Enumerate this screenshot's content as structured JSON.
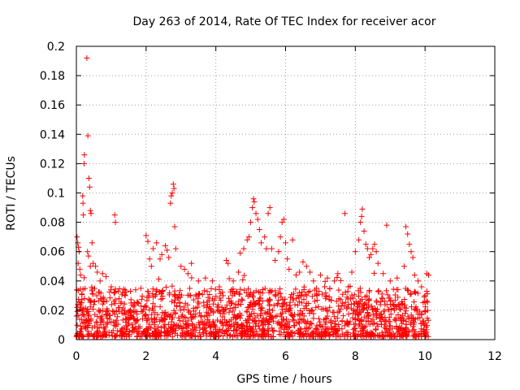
{
  "chart_data": {
    "type": "scatter",
    "title": "Day 263 of 2014, Rate Of TEC Index for receiver acor",
    "xlabel": "GPS time / hours",
    "ylabel": "ROTI / TECUs",
    "xlim": [
      0,
      12
    ],
    "ylim": [
      0,
      0.2
    ],
    "xticks": [
      0,
      2,
      4,
      6,
      8,
      10,
      12
    ],
    "yticks": [
      0,
      0.02,
      0.04,
      0.06,
      0.08,
      0.1,
      0.12,
      0.14,
      0.16,
      0.18,
      0.2
    ],
    "xtick_labels": [
      "0",
      "2",
      "4",
      "6",
      "8",
      "10",
      "12"
    ],
    "ytick_labels": [
      "0",
      "0.02",
      "0.04",
      "0.06",
      "0.08",
      "0.1",
      "0.12",
      "0.14",
      "0.16",
      "0.18",
      "0.2"
    ],
    "grid": true,
    "marker": "+",
    "color": "#ff0000",
    "series": [
      {
        "name": "ROTI",
        "points": [
          [
            0.02,
            0.07
          ],
          [
            0.04,
            0.066
          ],
          [
            0.06,
            0.063
          ],
          [
            0.08,
            0.06
          ],
          [
            0.05,
            0.052
          ],
          [
            0.1,
            0.048
          ],
          [
            0.12,
            0.044
          ],
          [
            0.18,
            0.098
          ],
          [
            0.19,
            0.093
          ],
          [
            0.2,
            0.085
          ],
          [
            0.22,
            0.12
          ],
          [
            0.23,
            0.126
          ],
          [
            0.3,
            0.192
          ],
          [
            0.33,
            0.139
          ],
          [
            0.36,
            0.11
          ],
          [
            0.38,
            0.104
          ],
          [
            0.4,
            0.088
          ],
          [
            0.42,
            0.086
          ],
          [
            0.45,
            0.066
          ],
          [
            0.32,
            0.06
          ],
          [
            0.35,
            0.057
          ],
          [
            0.4,
            0.05
          ],
          [
            0.48,
            0.052
          ],
          [
            0.55,
            0.05
          ],
          [
            0.6,
            0.046
          ],
          [
            0.68,
            0.04
          ],
          [
            0.75,
            0.045
          ],
          [
            0.85,
            0.043
          ],
          [
            1.0,
            0.036
          ],
          [
            1.1,
            0.085
          ],
          [
            1.12,
            0.08
          ],
          [
            1.2,
            0.033
          ],
          [
            1.4,
            0.03
          ],
          [
            1.55,
            0.033
          ],
          [
            1.7,
            0.034
          ],
          [
            1.85,
            0.035
          ],
          [
            2.0,
            0.071
          ],
          [
            2.05,
            0.067
          ],
          [
            2.1,
            0.055
          ],
          [
            2.15,
            0.05
          ],
          [
            2.2,
            0.062
          ],
          [
            2.3,
            0.066
          ],
          [
            2.4,
            0.055
          ],
          [
            2.45,
            0.058
          ],
          [
            2.55,
            0.064
          ],
          [
            2.6,
            0.061
          ],
          [
            2.65,
            0.056
          ],
          [
            2.7,
            0.093
          ],
          [
            2.72,
            0.098
          ],
          [
            2.75,
            0.1
          ],
          [
            2.78,
            0.106
          ],
          [
            2.8,
            0.103
          ],
          [
            2.82,
            0.077
          ],
          [
            2.85,
            0.062
          ],
          [
            3.0,
            0.05
          ],
          [
            3.1,
            0.048
          ],
          [
            3.2,
            0.045
          ],
          [
            3.3,
            0.052
          ],
          [
            3.5,
            0.04
          ],
          [
            3.7,
            0.042
          ],
          [
            3.9,
            0.04
          ],
          [
            4.1,
            0.036
          ],
          [
            4.3,
            0.054
          ],
          [
            4.35,
            0.052
          ],
          [
            4.5,
            0.04
          ],
          [
            4.65,
            0.046
          ],
          [
            4.7,
            0.059
          ],
          [
            4.8,
            0.062
          ],
          [
            4.9,
            0.068
          ],
          [
            4.95,
            0.07
          ],
          [
            5.0,
            0.08
          ],
          [
            5.05,
            0.09
          ],
          [
            5.08,
            0.096
          ],
          [
            5.1,
            0.094
          ],
          [
            5.15,
            0.086
          ],
          [
            5.2,
            0.082
          ],
          [
            5.25,
            0.075
          ],
          [
            5.3,
            0.066
          ],
          [
            5.4,
            0.07
          ],
          [
            5.45,
            0.062
          ],
          [
            5.5,
            0.086
          ],
          [
            5.55,
            0.09
          ],
          [
            5.6,
            0.062
          ],
          [
            5.7,
            0.054
          ],
          [
            5.8,
            0.06
          ],
          [
            5.85,
            0.07
          ],
          [
            5.9,
            0.08
          ],
          [
            5.95,
            0.082
          ],
          [
            6.0,
            0.066
          ],
          [
            6.05,
            0.055
          ],
          [
            6.1,
            0.048
          ],
          [
            6.2,
            0.068
          ],
          [
            6.3,
            0.044
          ],
          [
            6.4,
            0.046
          ],
          [
            6.5,
            0.053
          ],
          [
            6.6,
            0.05
          ],
          [
            6.7,
            0.046
          ],
          [
            6.8,
            0.04
          ],
          [
            7.0,
            0.044
          ],
          [
            7.2,
            0.042
          ],
          [
            7.4,
            0.04
          ],
          [
            7.5,
            0.045
          ],
          [
            7.7,
            0.086
          ],
          [
            7.8,
            0.036
          ],
          [
            7.9,
            0.046
          ],
          [
            8.0,
            0.06
          ],
          [
            8.1,
            0.068
          ],
          [
            8.15,
            0.08
          ],
          [
            8.18,
            0.084
          ],
          [
            8.2,
            0.089
          ],
          [
            8.25,
            0.074
          ],
          [
            8.3,
            0.065
          ],
          [
            8.35,
            0.062
          ],
          [
            8.4,
            0.056
          ],
          [
            8.45,
            0.058
          ],
          [
            8.5,
            0.062
          ],
          [
            8.55,
            0.065
          ],
          [
            8.6,
            0.06
          ],
          [
            8.65,
            0.052
          ],
          [
            8.8,
            0.045
          ],
          [
            8.9,
            0.078
          ],
          [
            9.0,
            0.04
          ],
          [
            9.2,
            0.042
          ],
          [
            9.4,
            0.05
          ],
          [
            9.45,
            0.077
          ],
          [
            9.5,
            0.072
          ],
          [
            9.55,
            0.065
          ],
          [
            9.6,
            0.06
          ],
          [
            9.65,
            0.056
          ],
          [
            9.7,
            0.044
          ],
          [
            9.8,
            0.04
          ],
          [
            9.9,
            0.036
          ],
          [
            10.0,
            0.03
          ],
          [
            10.05,
            0.045
          ],
          [
            10.1,
            0.044
          ]
        ],
        "dense_band": {
          "x_range": [
            0,
            10.1
          ],
          "typical_range": [
            0.002,
            0.035
          ],
          "note": "thousands of dense points forming a band near the bottom"
        }
      }
    ]
  }
}
